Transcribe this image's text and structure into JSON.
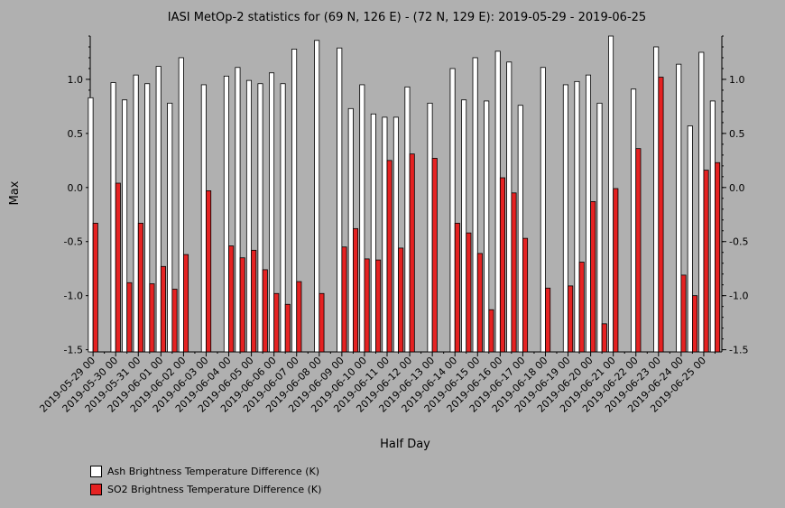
{
  "chart_data": {
    "type": "bar",
    "title": "IASI MetOp-2 statistics for (69 N, 126 E) - (72 N, 129 E): 2019-05-29 - 2019-06-25",
    "xlabel": "Half Day",
    "ylabel": "Max",
    "ylim": [
      -1.52,
      1.4
    ],
    "yticks": [
      -1.5,
      -1.0,
      -0.5,
      0.0,
      0.5,
      1.0
    ],
    "ytick_labels": [
      "-1.5",
      "-1.0",
      "-0.5",
      "0.0",
      "0.5",
      "1.0"
    ],
    "grid": false,
    "legend_position": "bottom-left",
    "x": [
      0,
      1,
      2,
      3,
      4,
      5,
      6,
      7,
      8,
      9,
      10,
      11,
      12,
      13,
      14,
      15,
      16,
      17,
      18,
      19,
      20,
      21,
      22,
      23,
      24,
      25,
      26,
      27,
      28,
      29,
      30,
      31,
      32,
      33,
      34,
      35,
      36,
      37,
      38,
      39,
      40,
      41,
      42,
      43,
      44,
      45,
      46,
      47,
      48,
      49,
      50,
      51,
      52,
      53,
      54,
      55
    ],
    "xticks": [
      0,
      2,
      4,
      6,
      8,
      10,
      12,
      14,
      16,
      18,
      20,
      22,
      24,
      26,
      28,
      30,
      32,
      34,
      36,
      38,
      40,
      42,
      44,
      46,
      48,
      50,
      52,
      54
    ],
    "xtick_labels": [
      "2019-05-29 00",
      "2019-05-30 00",
      "2019-05-31 00",
      "2019-06-01 00",
      "2019-06-02 00",
      "2019-06-03 00",
      "2019-06-04 00",
      "2019-06-05 00",
      "2019-06-06 00",
      "2019-06-07 00",
      "2019-06-08 00",
      "2019-06-09 00",
      "2019-06-10 00",
      "2019-06-11 00",
      "2019-06-12 00",
      "2019-06-13 00",
      "2019-06-14 00",
      "2019-06-15 00",
      "2019-06-16 00",
      "2019-06-17 00",
      "2019-06-18 00",
      "2019-06-19 00",
      "2019-06-20 00",
      "2019-06-21 00",
      "2019-06-22 00",
      "2019-06-23 00",
      "2019-06-24 00",
      "2019-06-25 00"
    ],
    "series": [
      {
        "name": "Ash Brightness Temperature Difference (K)",
        "color": "#ffffff",
        "values": [
          0.83,
          null,
          0.97,
          0.81,
          1.04,
          0.96,
          1.12,
          0.78,
          1.2,
          null,
          0.95,
          null,
          1.03,
          1.11,
          0.99,
          0.96,
          1.06,
          0.96,
          1.28,
          null,
          1.36,
          null,
          1.29,
          0.73,
          0.95,
          0.68,
          0.65,
          0.65,
          0.93,
          null,
          0.78,
          null,
          1.1,
          0.81,
          1.2,
          0.8,
          1.26,
          1.16,
          0.76,
          null,
          1.11,
          null,
          0.95,
          0.98,
          1.04,
          0.78,
          1.4,
          null,
          0.91,
          null,
          1.3,
          null,
          1.14,
          0.57,
          1.25,
          0.8
        ]
      },
      {
        "name": "SO2 Brightness Temperature Difference (K)",
        "color": "#e52222",
        "values": [
          -0.33,
          null,
          0.04,
          -0.88,
          -0.33,
          -0.89,
          -0.73,
          -0.94,
          -0.62,
          null,
          -0.03,
          null,
          -0.54,
          -0.65,
          -0.58,
          -0.76,
          -0.98,
          -1.08,
          -0.87,
          null,
          -0.98,
          null,
          -0.55,
          -0.38,
          -0.66,
          -0.67,
          0.25,
          -0.56,
          0.31,
          null,
          0.27,
          null,
          -0.33,
          -0.42,
          -0.61,
          -1.13,
          0.09,
          -0.05,
          -0.47,
          null,
          -0.93,
          null,
          -0.91,
          -0.69,
          -0.13,
          -1.26,
          -0.01,
          null,
          0.36,
          null,
          1.02,
          null,
          -0.81,
          -1.0,
          0.16,
          0.23
        ]
      }
    ]
  }
}
